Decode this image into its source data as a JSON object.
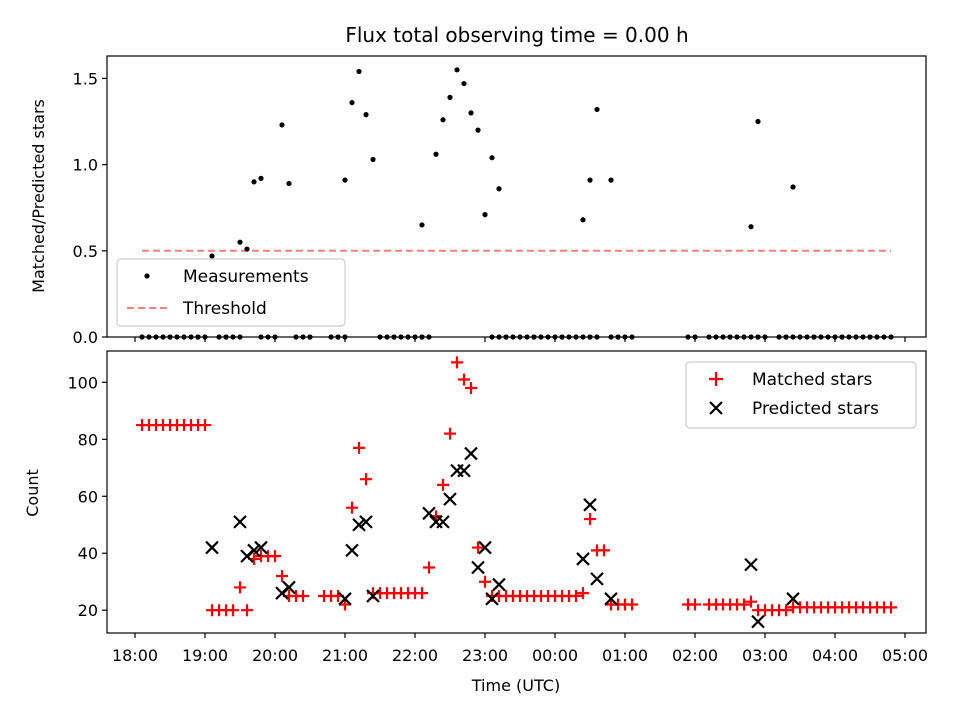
{
  "title": "Flux total observing time = 0.00 h",
  "chart_data": [
    {
      "type": "scatter",
      "name": "ratio-panel",
      "ylabel": "Matched/Predicted stars",
      "xlabel": "",
      "xlim": [
        17.6,
        5.3
      ],
      "ylim": [
        0,
        1.63
      ],
      "yticks": [
        0,
        0.5,
        1.0,
        1.5
      ],
      "ytick_labels": [
        "0.0",
        "0.5",
        "1.0",
        "1.5"
      ],
      "legend": {
        "position": "lower-left",
        "entries": [
          "Measurements",
          "Threshold"
        ]
      },
      "threshold": {
        "name": "Threshold",
        "value": 0.5,
        "x_start": 18.1,
        "x_end": 28.8,
        "color": "#ff7f7f"
      },
      "series": [
        {
          "name": "Measurements",
          "color": "#000000",
          "marker": "dot",
          "points": [
            [
              19.1,
              0.47
            ],
            [
              19.5,
              0.55
            ],
            [
              19.6,
              0.51
            ],
            [
              19.7,
              0.9
            ],
            [
              19.8,
              0.92
            ],
            [
              20.1,
              1.23
            ],
            [
              20.2,
              0.89
            ],
            [
              21.0,
              0.91
            ],
            [
              21.1,
              1.36
            ],
            [
              21.2,
              1.54
            ],
            [
              21.3,
              1.29
            ],
            [
              21.4,
              1.03
            ],
            [
              22.1,
              0.65
            ],
            [
              22.3,
              1.06
            ],
            [
              22.4,
              1.26
            ],
            [
              22.5,
              1.39
            ],
            [
              22.6,
              1.55
            ],
            [
              22.7,
              1.47
            ],
            [
              22.8,
              1.3
            ],
            [
              22.9,
              1.2
            ],
            [
              23.0,
              0.71
            ],
            [
              23.1,
              1.04
            ],
            [
              23.2,
              0.86
            ],
            [
              24.4,
              0.68
            ],
            [
              24.5,
              0.91
            ],
            [
              24.6,
              1.32
            ],
            [
              24.8,
              0.91
            ],
            [
              26.8,
              0.64
            ],
            [
              26.9,
              1.25
            ],
            [
              27.4,
              0.87
            ]
          ],
          "zero_runs": [
            [
              18.1,
              18.2,
              18.3,
              18.4,
              18.5,
              18.6,
              18.7,
              18.8,
              18.9,
              19.0
            ],
            [
              19.2,
              19.3,
              19.4,
              19.5
            ],
            [
              19.8,
              19.9,
              20.0
            ],
            [
              20.3,
              20.4,
              20.5
            ],
            [
              20.8,
              20.9,
              21.0
            ],
            [
              21.5,
              21.6,
              21.7,
              21.8,
              21.9,
              22.0,
              22.1,
              22.2
            ],
            [
              23.1,
              23.2,
              23.3,
              23.4,
              23.5,
              23.6,
              23.7,
              23.8,
              23.9,
              24.0,
              24.1,
              24.2,
              24.3,
              24.4,
              24.5,
              24.6
            ],
            [
              24.8,
              24.9,
              25.0,
              25.1
            ],
            [
              25.9,
              26.0
            ],
            [
              26.2,
              26.3,
              26.4,
              26.5,
              26.6,
              26.7,
              26.8,
              26.9,
              27.0
            ],
            [
              27.2,
              27.3,
              27.4,
              27.5,
              27.6,
              27.7,
              27.8,
              27.9,
              28.0,
              28.1,
              28.2,
              28.3,
              28.4,
              28.5,
              28.6,
              28.7,
              28.8
            ]
          ]
        }
      ]
    },
    {
      "type": "scatter",
      "name": "count-panel",
      "ylabel": "Count",
      "xlabel": "Time (UTC)",
      "xlim": [
        17.6,
        5.3
      ],
      "ylim": [
        12,
        111
      ],
      "yticks": [
        20,
        40,
        60,
        80,
        100
      ],
      "ytick_labels": [
        "20",
        "40",
        "60",
        "80",
        "100"
      ],
      "xticks": [
        18,
        19,
        20,
        21,
        22,
        23,
        24,
        25,
        26,
        27,
        28,
        29
      ],
      "xtick_labels": [
        "18:00",
        "19:00",
        "20:00",
        "21:00",
        "22:00",
        "23:00",
        "00:00",
        "01:00",
        "02:00",
        "03:00",
        "04:00",
        "05:00"
      ],
      "legend": {
        "position": "top-right",
        "entries": [
          "Matched stars",
          "Predicted stars"
        ]
      },
      "series": [
        {
          "name": "Matched stars",
          "color": "#ff0000",
          "marker": "plus",
          "points": [
            [
              18.1,
              85
            ],
            [
              18.2,
              85
            ],
            [
              18.3,
              85
            ],
            [
              18.4,
              85
            ],
            [
              18.5,
              85
            ],
            [
              18.6,
              85
            ],
            [
              18.7,
              85
            ],
            [
              18.8,
              85
            ],
            [
              18.9,
              85
            ],
            [
              19.0,
              85
            ],
            [
              19.1,
              20
            ],
            [
              19.2,
              20
            ],
            [
              19.3,
              20
            ],
            [
              19.4,
              20
            ],
            [
              19.5,
              28
            ],
            [
              19.6,
              20
            ],
            [
              19.7,
              38
            ],
            [
              19.8,
              39
            ],
            [
              19.9,
              39
            ],
            [
              20.0,
              39
            ],
            [
              20.1,
              32
            ],
            [
              20.2,
              25
            ],
            [
              20.3,
              25
            ],
            [
              20.4,
              25
            ],
            [
              20.7,
              25
            ],
            [
              20.8,
              25
            ],
            [
              20.9,
              25
            ],
            [
              21.0,
              22
            ],
            [
              21.1,
              56
            ],
            [
              21.2,
              77
            ],
            [
              21.3,
              66
            ],
            [
              21.4,
              26
            ],
            [
              21.5,
              26
            ],
            [
              21.6,
              26
            ],
            [
              21.7,
              26
            ],
            [
              21.8,
              26
            ],
            [
              21.9,
              26
            ],
            [
              22.0,
              26
            ],
            [
              22.1,
              26
            ],
            [
              22.2,
              35
            ],
            [
              22.3,
              53
            ],
            [
              22.4,
              64
            ],
            [
              22.5,
              82
            ],
            [
              22.6,
              107
            ],
            [
              22.7,
              101
            ],
            [
              22.8,
              98
            ],
            [
              22.9,
              42
            ],
            [
              23.0,
              30
            ],
            [
              23.1,
              25
            ],
            [
              23.2,
              25
            ],
            [
              23.3,
              25
            ],
            [
              23.4,
              25
            ],
            [
              23.5,
              25
            ],
            [
              23.6,
              25
            ],
            [
              23.7,
              25
            ],
            [
              23.8,
              25
            ],
            [
              23.9,
              25
            ],
            [
              24.0,
              25
            ],
            [
              24.1,
              25
            ],
            [
              24.2,
              25
            ],
            [
              24.3,
              25
            ],
            [
              24.4,
              26
            ],
            [
              24.5,
              52
            ],
            [
              24.6,
              41
            ],
            [
              24.7,
              41
            ],
            [
              24.8,
              22
            ],
            [
              24.9,
              22
            ],
            [
              25.0,
              22
            ],
            [
              25.1,
              22
            ],
            [
              25.9,
              22
            ],
            [
              26.0,
              22
            ],
            [
              26.2,
              22
            ],
            [
              26.3,
              22
            ],
            [
              26.4,
              22
            ],
            [
              26.5,
              22
            ],
            [
              26.6,
              22
            ],
            [
              26.7,
              22
            ],
            [
              26.8,
              23
            ],
            [
              26.9,
              20
            ],
            [
              27.0,
              20
            ],
            [
              27.1,
              20
            ],
            [
              27.2,
              20
            ],
            [
              27.3,
              20
            ],
            [
              27.4,
              21
            ],
            [
              27.5,
              21
            ],
            [
              27.6,
              21
            ],
            [
              27.7,
              21
            ],
            [
              27.8,
              21
            ],
            [
              27.9,
              21
            ],
            [
              28.0,
              21
            ],
            [
              28.1,
              21
            ],
            [
              28.2,
              21
            ],
            [
              28.3,
              21
            ],
            [
              28.4,
              21
            ],
            [
              28.5,
              21
            ],
            [
              28.6,
              21
            ],
            [
              28.7,
              21
            ],
            [
              28.8,
              21
            ]
          ]
        },
        {
          "name": "Predicted stars",
          "color": "#000000",
          "marker": "x",
          "points": [
            [
              19.1,
              42
            ],
            [
              19.5,
              51
            ],
            [
              19.6,
              39
            ],
            [
              19.7,
              41
            ],
            [
              19.8,
              42
            ],
            [
              20.1,
              26
            ],
            [
              20.2,
              28
            ],
            [
              21.0,
              24
            ],
            [
              21.1,
              41
            ],
            [
              21.2,
              50
            ],
            [
              21.3,
              51
            ],
            [
              21.4,
              25
            ],
            [
              22.2,
              54
            ],
            [
              22.3,
              51
            ],
            [
              22.4,
              51
            ],
            [
              22.5,
              59
            ],
            [
              22.6,
              69
            ],
            [
              22.7,
              69
            ],
            [
              22.8,
              75
            ],
            [
              22.9,
              35
            ],
            [
              23.0,
              42
            ],
            [
              23.1,
              24
            ],
            [
              23.2,
              29
            ],
            [
              24.4,
              38
            ],
            [
              24.5,
              57
            ],
            [
              24.6,
              31
            ],
            [
              24.8,
              24
            ],
            [
              26.8,
              36
            ],
            [
              26.9,
              16
            ],
            [
              27.4,
              24
            ]
          ]
        }
      ]
    }
  ]
}
